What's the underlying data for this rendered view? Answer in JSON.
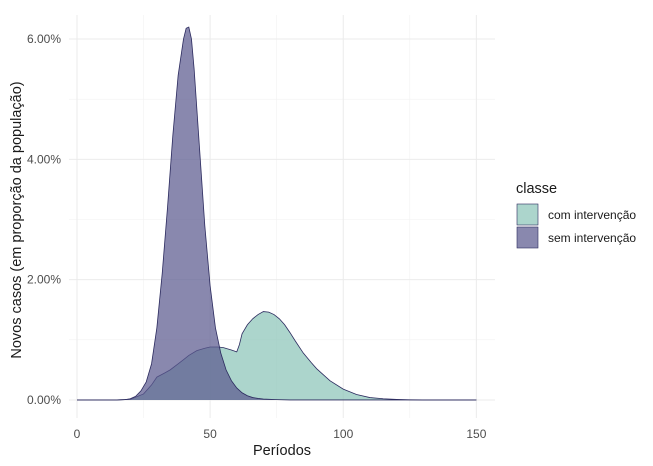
{
  "chart_data": {
    "type": "area",
    "xlabel": "Períodos",
    "ylabel": "Novos casos (em proporção da população)",
    "xlim": [
      -3,
      157
    ],
    "ylim": [
      -0.003,
      0.064
    ],
    "x_ticks": [
      0,
      50,
      100,
      150
    ],
    "x_tick_labels": [
      "0",
      "50",
      "100",
      "150"
    ],
    "y_ticks": [
      0,
      0.02,
      0.04,
      0.06
    ],
    "y_tick_labels": [
      "0.00%",
      "2.00%",
      "4.00%",
      "6.00%"
    ],
    "grid": true,
    "legend": {
      "title": "classe",
      "placement": "right"
    },
    "series": [
      {
        "name": "com intervenção",
        "color": "#8cc5b8",
        "x": [
          0,
          15,
          20,
          25,
          28,
          30,
          33,
          35,
          38,
          40,
          42,
          45,
          48,
          50,
          53,
          55,
          58,
          60,
          61,
          62,
          64,
          66,
          68,
          70,
          72,
          74,
          76,
          78,
          80,
          82,
          85,
          88,
          90,
          95,
          100,
          105,
          110,
          115,
          120,
          125,
          130,
          150
        ],
        "values": [
          0,
          0,
          0.0001,
          0.001,
          0.0025,
          0.0038,
          0.0045,
          0.005,
          0.006,
          0.0067,
          0.0074,
          0.0082,
          0.0086,
          0.0088,
          0.0088,
          0.0087,
          0.0083,
          0.008,
          0.0092,
          0.011,
          0.0125,
          0.0135,
          0.0142,
          0.0147,
          0.0146,
          0.0142,
          0.0135,
          0.0125,
          0.0112,
          0.0098,
          0.0078,
          0.0062,
          0.0052,
          0.0032,
          0.0018,
          0.0009,
          0.0004,
          0.0002,
          0.0001,
          3e-05,
          0,
          0
        ]
      },
      {
        "name": "sem intervenção",
        "color": "#5c5a8f",
        "x": [
          0,
          15,
          18,
          20,
          22,
          24,
          26,
          28,
          30,
          32,
          34,
          36,
          38,
          40,
          41,
          42,
          43,
          44,
          46,
          48,
          50,
          52,
          54,
          56,
          58,
          60,
          62,
          64,
          66,
          68,
          70,
          75,
          80,
          150
        ],
        "values": [
          0,
          0,
          5e-05,
          0.0002,
          0.0006,
          0.0015,
          0.003,
          0.006,
          0.012,
          0.021,
          0.032,
          0.044,
          0.054,
          0.06,
          0.0618,
          0.062,
          0.06,
          0.055,
          0.042,
          0.029,
          0.019,
          0.012,
          0.0078,
          0.005,
          0.0032,
          0.002,
          0.0012,
          0.0007,
          0.0004,
          0.00025,
          0.00015,
          5e-05,
          0,
          0
        ]
      }
    ]
  }
}
